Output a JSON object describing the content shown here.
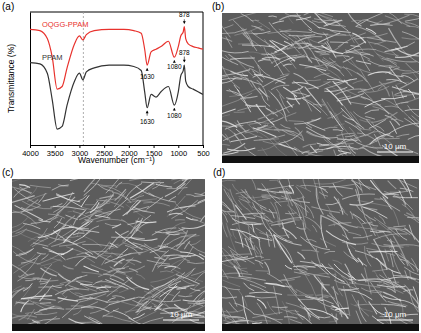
{
  "chart_data": {
    "type": "line",
    "x_label": "Wavenumber (cm⁻¹)",
    "y_label": "Transmittance (%)",
    "x": [
      4000,
      3800,
      3650,
      3550,
      3450,
      3350,
      3250,
      3100,
      3000,
      2930,
      2860,
      2700,
      2400,
      2100,
      1900,
      1750,
      1680,
      1630,
      1550,
      1450,
      1350,
      1200,
      1080,
      1000,
      950,
      900,
      878,
      850,
      800,
      700,
      600,
      500
    ],
    "series": [
      {
        "name": "OQGG-PPAM",
        "color": "#e8322d",
        "values": [
          87,
          86,
          80,
          66,
          42,
          44,
          58,
          76,
          82,
          79,
          83,
          86,
          87,
          87,
          86,
          84,
          72,
          60,
          70,
          72,
          74,
          78,
          66,
          74,
          82,
          85,
          89,
          80,
          76,
          74,
          73,
          72
        ]
      },
      {
        "name": "PPAM",
        "color": "#333333",
        "values": [
          62,
          61,
          54,
          34,
          12,
          14,
          30,
          48,
          54,
          49,
          55,
          58,
          60,
          60,
          59,
          56,
          40,
          28,
          38,
          36,
          40,
          44,
          30,
          40,
          52,
          56,
          60,
          48,
          44,
          42,
          40,
          38
        ]
      }
    ],
    "xlim": [
      4000,
      500
    ],
    "xticks": [
      4000,
      3500,
      3000,
      2500,
      2000,
      1500,
      1000,
      500
    ],
    "ylim": [
      0,
      100
    ],
    "tick_labels": "x",
    "vlines": [
      2920
    ],
    "annotations": [
      {
        "text": "1630",
        "x": 1630,
        "y": 50
      },
      {
        "text": "1080",
        "x": 1080,
        "y": 57
      },
      {
        "text": "878",
        "x": 878,
        "y": 96
      },
      {
        "text": "1630",
        "x": 1630,
        "y": 16
      },
      {
        "text": "1080",
        "x": 1080,
        "y": 20
      },
      {
        "text": "878",
        "x": 878,
        "y": 68
      }
    ]
  },
  "panels": [
    {
      "label": "(a)"
    },
    {
      "label": "(b)",
      "scale_bar": "10 μm"
    },
    {
      "label": "(c)",
      "scale_bar": "10 μm"
    },
    {
      "label": "(d)",
      "scale_bar": "10 μm"
    }
  ]
}
